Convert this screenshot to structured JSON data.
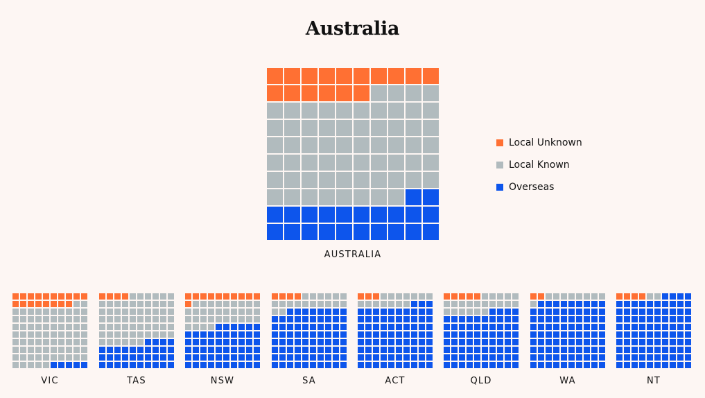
{
  "title": "Australia",
  "colors": {
    "local_unknown": "#ff7033",
    "local_known": "#b1bbbe",
    "overseas": "#0d55ec"
  },
  "legend": [
    {
      "key": "local_unknown",
      "label": "Local Unknown"
    },
    {
      "key": "local_known",
      "label": "Local Known"
    },
    {
      "key": "overseas",
      "label": "Overseas"
    }
  ],
  "chart_data": [
    {
      "type": "waffle",
      "name": "AUSTRALIA",
      "grid": "10x10",
      "local_unknown": 16,
      "local_known": 62,
      "overseas": 22
    },
    {
      "type": "waffle",
      "name": "VIC",
      "grid": "10x10",
      "local_unknown": 18,
      "local_known": 77,
      "overseas": 5
    },
    {
      "type": "waffle",
      "name": "TAS",
      "grid": "10x10",
      "local_unknown": 4,
      "local_known": 62,
      "overseas": 34
    },
    {
      "type": "waffle",
      "name": "NSW",
      "grid": "10x10",
      "local_unknown": 11,
      "local_known": 33,
      "overseas": 56
    },
    {
      "type": "waffle",
      "name": "SA",
      "grid": "10x10",
      "local_unknown": 4,
      "local_known": 18,
      "overseas": 78
    },
    {
      "type": "waffle",
      "name": "ACT",
      "grid": "10x10",
      "local_unknown": 3,
      "local_known": 14,
      "overseas": 83
    },
    {
      "type": "waffle",
      "name": "QLD",
      "grid": "10x10",
      "local_unknown": 5,
      "local_known": 21,
      "overseas": 74
    },
    {
      "type": "waffle",
      "name": "WA",
      "grid": "10x10",
      "local_unknown": 2,
      "local_known": 9,
      "overseas": 89
    },
    {
      "type": "waffle",
      "name": "NT",
      "grid": "10x10",
      "local_unknown": 4,
      "local_known": 2,
      "overseas": 94
    }
  ]
}
